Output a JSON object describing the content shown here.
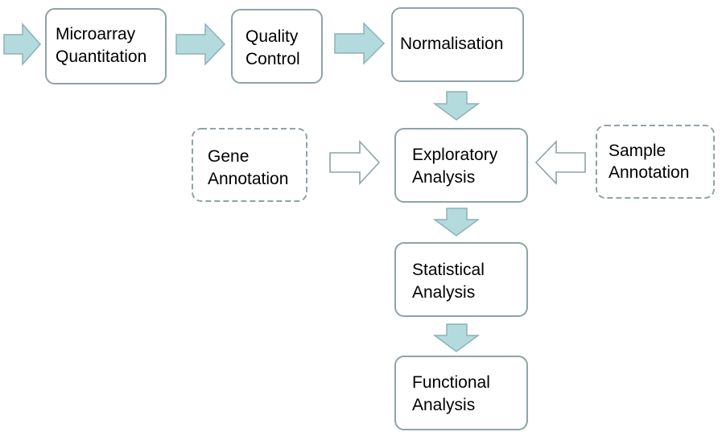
{
  "colors": {
    "node_border": "#8fa3a7",
    "arrow_fill": "#b3dadd",
    "arrow_stroke": "#8fb1b4",
    "outline_arrow_stroke": "#8fa3a7",
    "text": "#000000"
  },
  "nodes": {
    "microarray_quantitation": {
      "line1": "Microarray",
      "line2": "Quantitation"
    },
    "quality_control": {
      "line1": "Quality",
      "line2": "Control"
    },
    "normalisation": {
      "line1": "Normalisation"
    },
    "exploratory_analysis": {
      "line1": "Exploratory",
      "line2": "Analysis"
    },
    "gene_annotation": {
      "line1": "Gene",
      "line2": "Annotation"
    },
    "sample_annotation": {
      "line1": "Sample",
      "line2": "Annotation"
    },
    "statistical_analysis": {
      "line1": "Statistical",
      "line2": "Analysis"
    },
    "functional_analysis": {
      "line1": "Functional",
      "line2": "Analysis"
    }
  }
}
